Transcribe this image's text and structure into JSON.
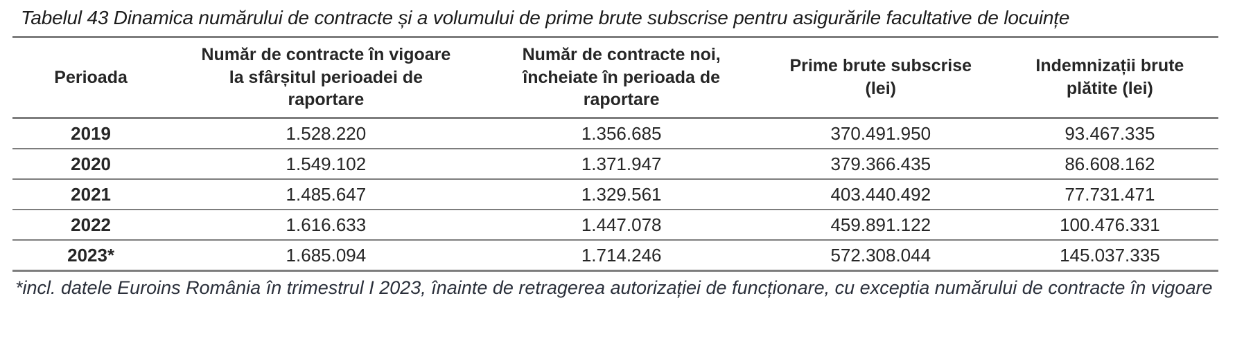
{
  "caption": "Tabelul 43 Dinamica numărului de contracte și a volumului de prime brute subscrise pentru asigurările facultative de locuințe",
  "table": {
    "columns": [
      "Perioada",
      "Număr de contracte în vigoare\nla sfârșitul perioadei de\nraportare",
      "Număr de contracte noi,\nîncheiate în perioada de\nraportare",
      "Prime brute subscrise\n(lei)",
      "Indemnizații brute\nplătite (lei)"
    ],
    "rows": [
      [
        "2019",
        "1.528.220",
        "1.356.685",
        "370.491.950",
        "93.467.335"
      ],
      [
        "2020",
        "1.549.102",
        "1.371.947",
        "379.366.435",
        "86.608.162"
      ],
      [
        "2021",
        "1.485.647",
        "1.329.561",
        "403.440.492",
        "77.731.471"
      ],
      [
        "2022",
        "1.616.633",
        "1.447.078",
        "459.891.122",
        "100.476.331"
      ],
      [
        "2023*",
        "1.685.094",
        "1.714.246",
        "572.308.044",
        "145.037.335"
      ]
    ]
  },
  "footnote": "*incl. datele Euroins România în trimestrul I 2023, înainte de retragerea autorizației de funcționare, cu exceptia numărului de contracte în vigoare",
  "colors": {
    "text": "#262626",
    "border": "#7d7d7d",
    "background": "#ffffff"
  }
}
